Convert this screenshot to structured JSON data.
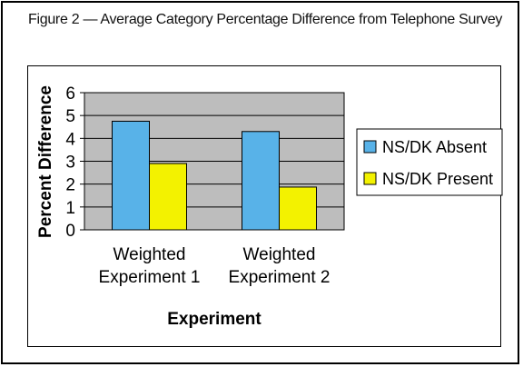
{
  "title": "Figure 2 — Average Category Percentage Difference from Telephone Survey",
  "chart_data": {
    "type": "bar",
    "categories": [
      [
        "Weighted",
        "Experiment 1"
      ],
      [
        "Weighted",
        "Experiment 2"
      ]
    ],
    "series": [
      {
        "name": "NS/DK Absent",
        "values": [
          4.75,
          4.3
        ],
        "color": "#58b2e8"
      },
      {
        "name": "NS/DK Present",
        "values": [
          2.9,
          1.87
        ],
        "color": "#f3f200"
      }
    ],
    "xlabel": "Experiment",
    "ylabel": "Percent Difference",
    "ylim": [
      0,
      6
    ],
    "yticks": [
      "0",
      "1",
      "2",
      "3",
      "4",
      "5",
      "6"
    ],
    "grid": true,
    "plot_background": "#bdbdbd",
    "legend_position": "right"
  }
}
